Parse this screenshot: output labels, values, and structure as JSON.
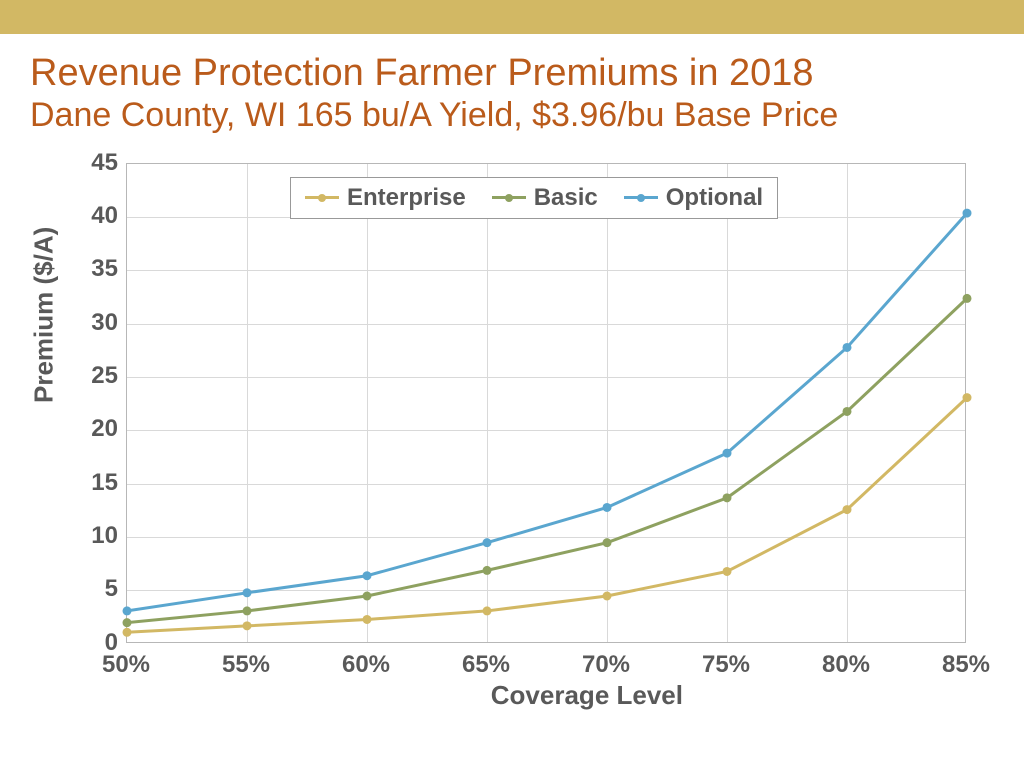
{
  "header": {
    "title": "Revenue Protection Farmer Premiums in 2018",
    "subtitle": "Dane County, WI 165 bu/A Yield, $3.96/bu Base Price"
  },
  "chart": {
    "type": "line",
    "background_color": "#ffffff",
    "grid_color": "#d9d9d9",
    "border_color": "#b7b7b7",
    "xlabel": "Coverage Level",
    "ylabel": "Premium ($/A)",
    "label_fontsize": 26,
    "tick_fontsize": 24,
    "tick_color": "#595959",
    "ylim": [
      0,
      45
    ],
    "ytick_step": 5,
    "yticks": [
      0,
      5,
      10,
      15,
      20,
      25,
      30,
      35,
      40,
      45
    ],
    "categories": [
      "50%",
      "55%",
      "60%",
      "65%",
      "70%",
      "75%",
      "80%",
      "85%"
    ],
    "line_width": 3,
    "marker_radius": 4.5,
    "series": [
      {
        "name": "Enterprise",
        "color": "#d2b864",
        "values": [
          1.1,
          1.7,
          2.3,
          3.1,
          4.5,
          6.8,
          12.6,
          23.1
        ]
      },
      {
        "name": "Basic",
        "color": "#8ea160",
        "values": [
          2.0,
          3.1,
          4.5,
          6.9,
          9.5,
          13.7,
          21.8,
          32.4
        ]
      },
      {
        "name": "Optional",
        "color": "#5aa6cf",
        "values": [
          3.1,
          4.8,
          6.4,
          9.5,
          12.8,
          17.9,
          27.8,
          40.4
        ]
      }
    ],
    "legend": {
      "border_color": "#999999",
      "background": "#ffffff",
      "fontsize": 24
    }
  },
  "top_bar_color": "#d2b864",
  "title_color": "#ba5b1b"
}
